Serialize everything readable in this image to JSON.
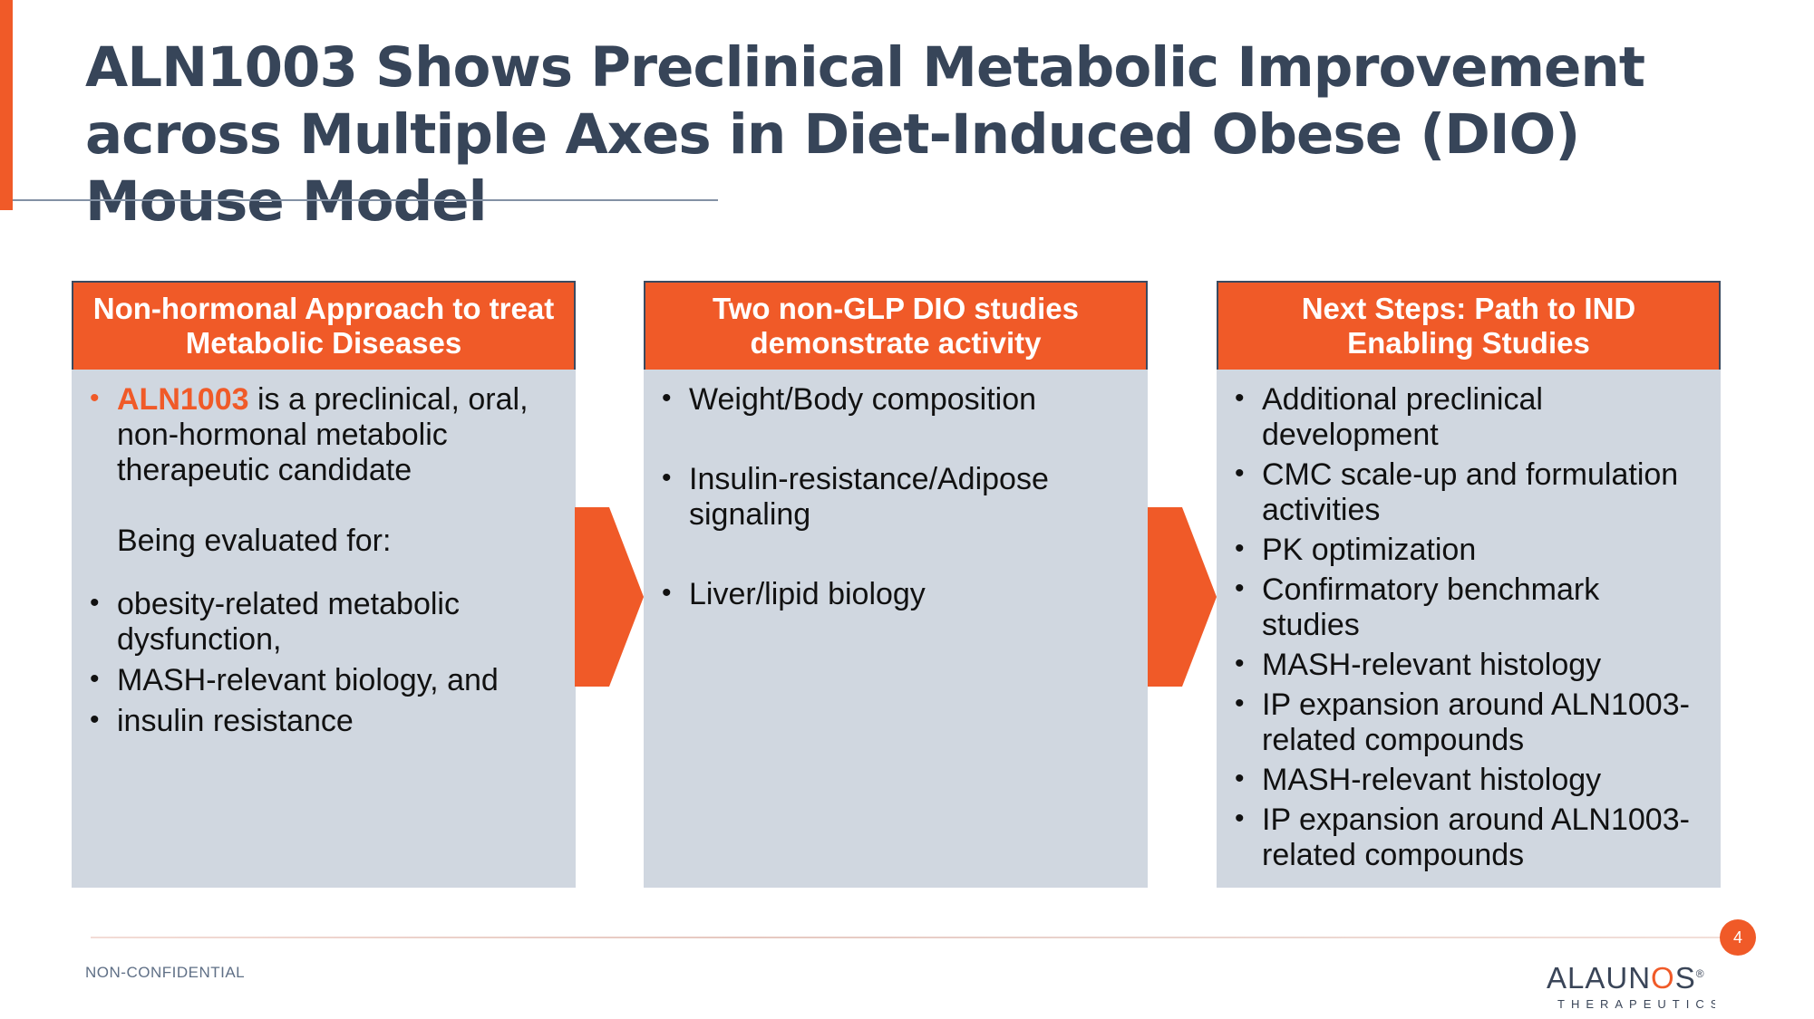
{
  "slide": {
    "title": "ALN1003 Shows Preclinical Metabolic Improvement across Multiple Axes in Diet-Induced Obese (DIO) Mouse Model"
  },
  "columns": [
    {
      "header": "Non-hormonal Approach to treat Metabolic Diseases",
      "intro_highlight": "ALN1003",
      "intro_rest": " is a preclinical, oral, non-hormonal metabolic therapeutic candidate",
      "evaluated_label": "Being evaluated for:",
      "items": [
        "obesity-related metabolic dysfunction,",
        "MASH-relevant biology, and",
        "insulin resistance"
      ]
    },
    {
      "header": "Two non-GLP DIO studies demonstrate activity",
      "items": [
        "Weight/Body composition",
        "Insulin-resistance/Adipose signaling",
        "Liver/lipid biology"
      ]
    },
    {
      "header": "Next Steps: Path to IND Enabling Studies",
      "items": [
        "Additional preclinical development",
        "CMC scale-up and formulation activities",
        "PK optimization",
        "Confirmatory benchmark studies",
        "MASH-relevant histology",
        "IP expansion around ALN1003-related compounds",
        "MASH-relevant histology",
        "IP expansion around ALN1003-related compounds"
      ]
    }
  ],
  "footer": {
    "classification": "NON-CONFIDENTIAL",
    "page_number": "4",
    "logo_main_a": "ALAUN",
    "logo_main_o": "O",
    "logo_main_b": "S",
    "logo_mark": "®",
    "logo_sub": "THERAPEUTICS"
  },
  "colors": {
    "accent": "#f05a28",
    "panel": "#d0d7e0",
    "title": "#374559"
  }
}
